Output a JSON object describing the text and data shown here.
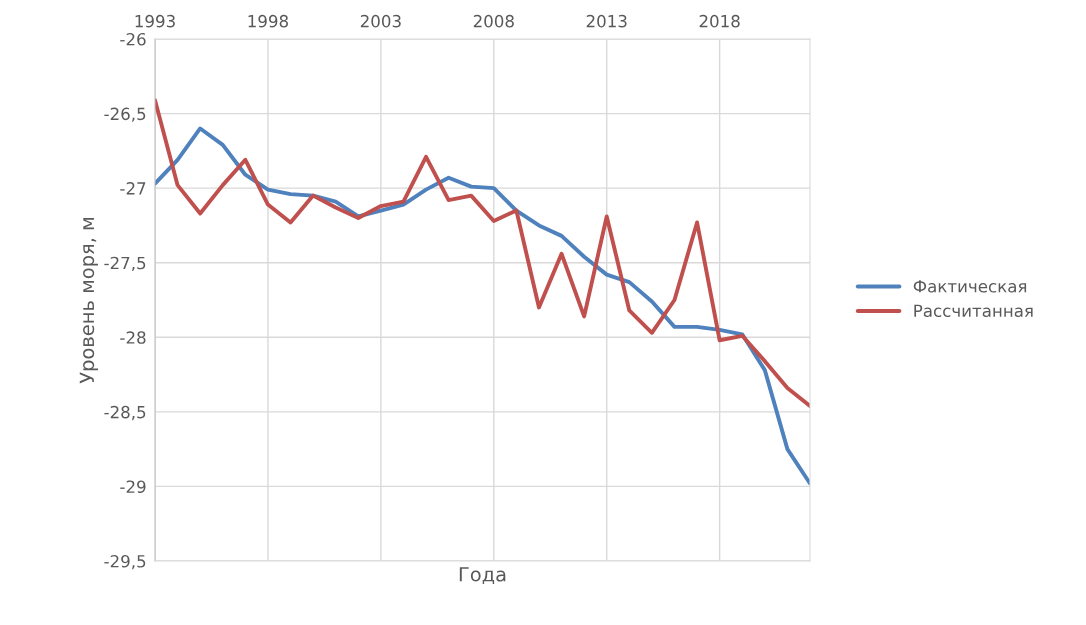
{
  "chart_data": {
    "type": "line",
    "xlabel": "Года",
    "ylabel": "Уровень моря, м",
    "x": [
      1993,
      1994,
      1995,
      1996,
      1997,
      1998,
      1999,
      2000,
      2001,
      2002,
      2003,
      2004,
      2005,
      2006,
      2007,
      2008,
      2009,
      2010,
      2011,
      2012,
      2013,
      2014,
      2015,
      2016,
      2017,
      2018,
      2019,
      2020,
      2021,
      2022
    ],
    "series": [
      {
        "name": "Фактическая",
        "color": "#4f81bd",
        "values": [
          -26.97,
          -26.81,
          -26.6,
          -26.71,
          -26.91,
          -27.01,
          -27.04,
          -27.05,
          -27.09,
          -27.19,
          -27.15,
          -27.11,
          -27.01,
          -26.93,
          -26.99,
          -27.0,
          -27.15,
          -27.25,
          -27.32,
          -27.46,
          -27.58,
          -27.63,
          -27.76,
          -27.93,
          -27.93,
          -27.95,
          -27.98,
          -28.22,
          -28.75,
          -28.98
        ]
      },
      {
        "name": "Рассчитанная",
        "color": "#c0504d",
        "values": [
          -26.41,
          -26.98,
          -27.17,
          -26.98,
          -26.81,
          -27.11,
          -27.23,
          -27.05,
          -27.13,
          -27.2,
          -27.12,
          -27.09,
          -26.79,
          -27.08,
          -27.05,
          -27.22,
          -27.15,
          -27.8,
          -27.44,
          -27.86,
          -27.19,
          -27.82,
          -27.97,
          -27.75,
          -27.23,
          -28.02,
          -27.99,
          -28.16,
          -28.34,
          -28.46
        ]
      }
    ],
    "xlim": [
      1993,
      2022
    ],
    "xticks": [
      1993,
      1998,
      2003,
      2008,
      2013,
      2018
    ],
    "ylim": [
      -29.5,
      -26
    ],
    "yticks": [
      {
        "value": -26,
        "label": "-26"
      },
      {
        "value": -26.5,
        "label": "-26,5"
      },
      {
        "value": -27,
        "label": "-27"
      },
      {
        "value": -27.5,
        "label": "-27,5"
      },
      {
        "value": -28,
        "label": "-28"
      },
      {
        "value": -28.5,
        "label": "-28,5"
      },
      {
        "value": -29,
        "label": "-29"
      },
      {
        "value": -29.5,
        "label": "-29,5"
      }
    ],
    "grid": true,
    "legend": "right",
    "line_style": "solid",
    "marker": "none"
  }
}
